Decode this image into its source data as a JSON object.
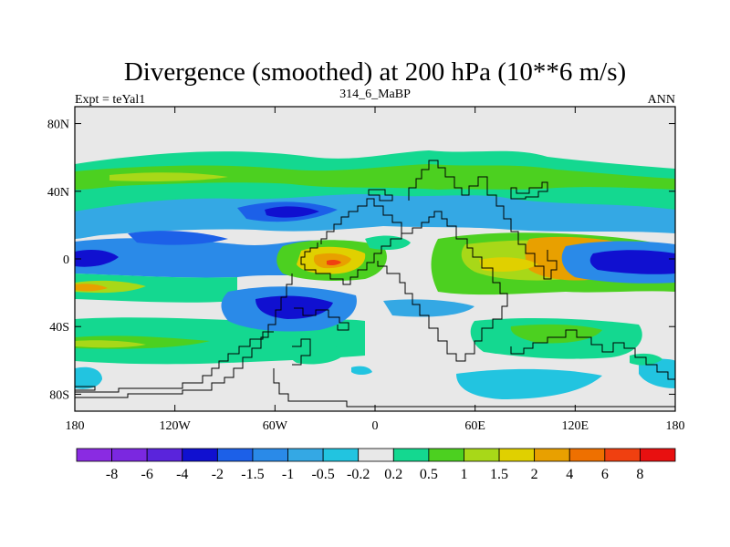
{
  "chart_data": {
    "type": "heatmap",
    "title": "Divergence (smoothed) at 200 hPa (10**6 m/s)",
    "subtitle_left": "Expt = teYal1",
    "subtitle_center": "314_6_MaBP",
    "subtitle_right": "ANN",
    "xlim": [
      -180,
      180
    ],
    "ylim": [
      -90,
      90
    ],
    "x_ticks": [
      {
        "value": -180,
        "label": "180"
      },
      {
        "value": -120,
        "label": "120W"
      },
      {
        "value": -60,
        "label": "60W"
      },
      {
        "value": 0,
        "label": "0"
      },
      {
        "value": 60,
        "label": "60E"
      },
      {
        "value": 120,
        "label": "120E"
      },
      {
        "value": 180,
        "label": "180"
      }
    ],
    "y_ticks": [
      {
        "value": 80,
        "label": "80N"
      },
      {
        "value": 40,
        "label": "40N"
      },
      {
        "value": 0,
        "label": "0"
      },
      {
        "value": -40,
        "label": "40S"
      },
      {
        "value": -80,
        "label": "80S"
      }
    ],
    "colorbar": {
      "levels": [
        "-8",
        "-6",
        "-4",
        "-2",
        "-1.5",
        "-1",
        "-0.5",
        "-0.2",
        "0.2",
        "0.5",
        "1",
        "1.5",
        "2",
        "4",
        "6",
        "8"
      ],
      "colors": [
        "#8a2be2",
        "#7b28e0",
        "#5a24dc",
        "#1010d0",
        "#1c60e8",
        "#2a8ae8",
        "#34a8e4",
        "#22c4e0",
        "#e8e8e8",
        "#14d890",
        "#4cd020",
        "#a8d818",
        "#e0d000",
        "#e8a000",
        "#ee7000",
        "#f04010",
        "#e81010"
      ]
    },
    "field": [
      {
        "lon": -180,
        "lat": 0,
        "rx": 20,
        "ry": 4,
        "v": -2
      },
      {
        "lon": -130,
        "lat": 10,
        "rx": 20,
        "ry": 4,
        "v": -2
      },
      {
        "lon": -35,
        "lat": 28,
        "rx": 25,
        "ry": 6,
        "v": -2
      },
      {
        "lon": -70,
        "lat": -25,
        "rx": 20,
        "ry": 6,
        "v": -2
      },
      {
        "lon": 165,
        "lat": 0,
        "rx": 25,
        "ry": 5,
        "v": -2
      },
      {
        "lon": -35,
        "lat": 2,
        "rx": 14,
        "ry": 6,
        "v": 2
      },
      {
        "lon": 95,
        "lat": 5,
        "rx": 25,
        "ry": 8,
        "v": 2
      },
      {
        "lon": 60,
        "lat": 8,
        "rx": 25,
        "ry": 5,
        "v": 1
      },
      {
        "lon": -165,
        "lat": -18,
        "rx": 20,
        "ry": 5,
        "v": 1
      },
      {
        "lon": 70,
        "lat": -12,
        "rx": 25,
        "ry": 5,
        "v": 1.5
      },
      {
        "lon": -140,
        "lat": 50,
        "rx": 40,
        "ry": 5,
        "v": 0.5
      },
      {
        "lon": 60,
        "lat": -48,
        "rx": 30,
        "ry": 5,
        "v": 0.5
      },
      {
        "lon": 100,
        "lat": -70,
        "rx": 30,
        "ry": 5,
        "v": -0.5
      }
    ]
  }
}
